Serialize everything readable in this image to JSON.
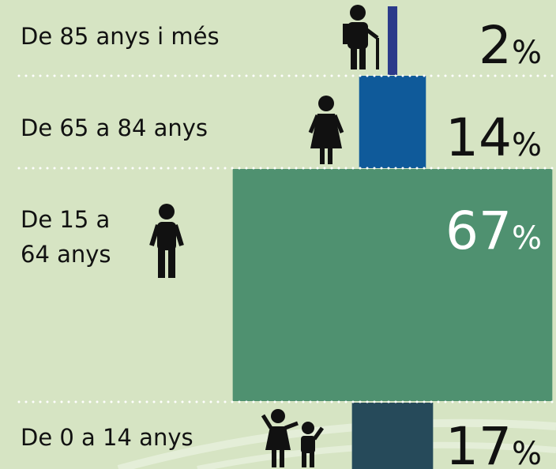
{
  "chart_data": {
    "type": "bar",
    "categories": [
      "De 85 anys i més",
      "De 65 a 84 anys",
      "De 15 a 64 anys",
      "De 0 a 14 anys"
    ],
    "values": [
      2,
      14,
      67,
      17
    ],
    "value_labels": [
      "2%",
      "14%",
      "67%",
      "17%"
    ],
    "colors": [
      "#2b3a8a",
      "#0f5a9a",
      "#4f9170",
      "#264a5a"
    ]
  }
}
